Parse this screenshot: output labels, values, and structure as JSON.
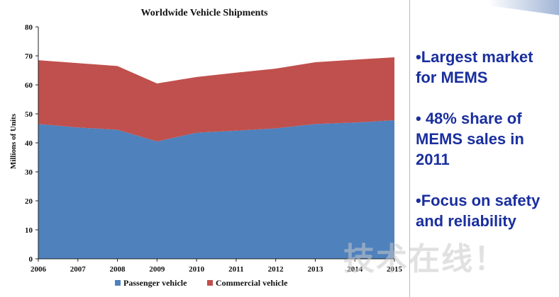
{
  "chart_data": {
    "type": "area",
    "title": "Worldwide Vehicle Shipments",
    "xlabel": "",
    "ylabel": "Millions of Units",
    "x": [
      2006,
      2007,
      2008,
      2009,
      2010,
      2011,
      2012,
      2013,
      2014,
      2015
    ],
    "ylim": [
      0,
      80
    ],
    "yticks": [
      0,
      10,
      20,
      30,
      40,
      50,
      60,
      70,
      80
    ],
    "stacked": true,
    "grid": false,
    "legend": "bottom",
    "series": [
      {
        "name": "Passenger vehicle",
        "color": "#4f81bd",
        "values": [
          46.5,
          45.3,
          44.5,
          40.5,
          43.5,
          44.2,
          45.0,
          46.5,
          47.0,
          47.8
        ]
      },
      {
        "name": "Commercial vehicle",
        "color": "#c0504d",
        "values": [
          22.0,
          22.2,
          22.0,
          20.0,
          19.2,
          20.0,
          20.6,
          21.3,
          21.7,
          21.7
        ]
      }
    ]
  },
  "bullets": [
    "•Largest market\nfor MEMS",
    "• 48% share of\nMEMS sales in\n2011",
    "•Focus on safety\nand reliability"
  ],
  "watermark": "技术在线！"
}
